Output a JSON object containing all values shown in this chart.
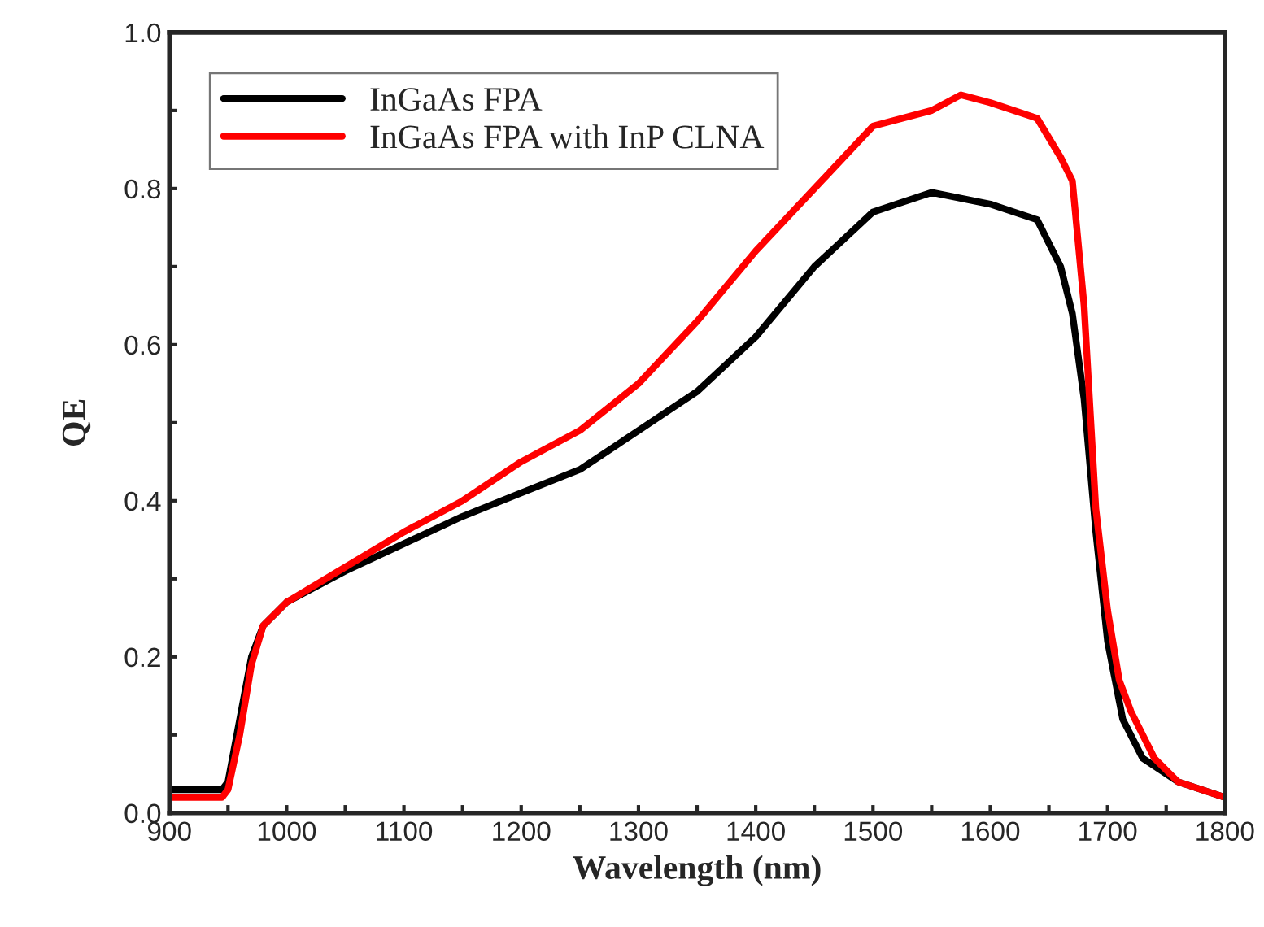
{
  "chart_data": {
    "type": "line",
    "xlabel": "Wavelength (nm)",
    "ylabel": "QE",
    "xlim": [
      900,
      1800
    ],
    "ylim": [
      0,
      1.0
    ],
    "xticks": [
      900,
      {
        "value": 950,
        "label": null
      },
      1000,
      {
        "value": 1050,
        "label": null
      },
      1100,
      {
        "value": 1150,
        "label": null
      },
      1200,
      {
        "value": 1250,
        "label": null
      },
      1300,
      {
        "value": 1350,
        "label": null
      },
      1400,
      {
        "value": 1450,
        "label": null
      },
      1500,
      {
        "value": 1550,
        "label": null
      },
      1600,
      {
        "value": 1650,
        "label": null
      },
      1700,
      {
        "value": 1750,
        "label": null
      },
      1800
    ],
    "yticks": [
      {
        "value": 0,
        "label": "0.0"
      },
      {
        "value": 0.1,
        "label": null
      },
      0.2,
      {
        "value": 0.3,
        "label": null
      },
      0.4,
      {
        "value": 0.5,
        "label": null
      },
      0.6,
      {
        "value": 0.7,
        "label": null
      },
      0.8,
      {
        "value": 0.9,
        "label": null
      },
      {
        "value": 1.0,
        "label": "1.0"
      }
    ],
    "grid": false,
    "legend": "top left",
    "marker": "none",
    "line_style": "solid",
    "series": [
      {
        "name": "InGaAs FPA",
        "color": "#000000",
        "x": [
          900,
          945,
          950,
          960,
          970,
          980,
          1000,
          1050,
          1100,
          1150,
          1200,
          1250,
          1300,
          1350,
          1400,
          1450,
          1500,
          1550,
          1600,
          1640,
          1660,
          1670,
          1680,
          1690,
          1700,
          1713,
          1730,
          1760,
          1800
        ],
        "values": [
          0.03,
          0.03,
          0.04,
          0.12,
          0.2,
          0.24,
          0.27,
          0.31,
          0.345,
          0.38,
          0.41,
          0.44,
          0.49,
          0.54,
          0.61,
          0.7,
          0.77,
          0.795,
          0.78,
          0.76,
          0.7,
          0.64,
          0.53,
          0.36,
          0.22,
          0.12,
          0.07,
          0.04,
          0.02
        ]
      },
      {
        "name": "InGaAs FPA with InP CLNA",
        "color": "#ff0000",
        "x": [
          900,
          945,
          950,
          960,
          970,
          980,
          1000,
          1050,
          1100,
          1150,
          1200,
          1250,
          1300,
          1350,
          1400,
          1450,
          1500,
          1550,
          1575,
          1600,
          1640,
          1660,
          1670,
          1680,
          1690,
          1700,
          1710,
          1720,
          1740,
          1760,
          1800
        ],
        "values": [
          0.02,
          0.02,
          0.03,
          0.1,
          0.19,
          0.24,
          0.27,
          0.315,
          0.36,
          0.4,
          0.45,
          0.49,
          0.55,
          0.63,
          0.72,
          0.8,
          0.88,
          0.9,
          0.92,
          0.91,
          0.89,
          0.84,
          0.81,
          0.65,
          0.39,
          0.26,
          0.17,
          0.13,
          0.07,
          0.04,
          0.02
        ]
      }
    ]
  }
}
